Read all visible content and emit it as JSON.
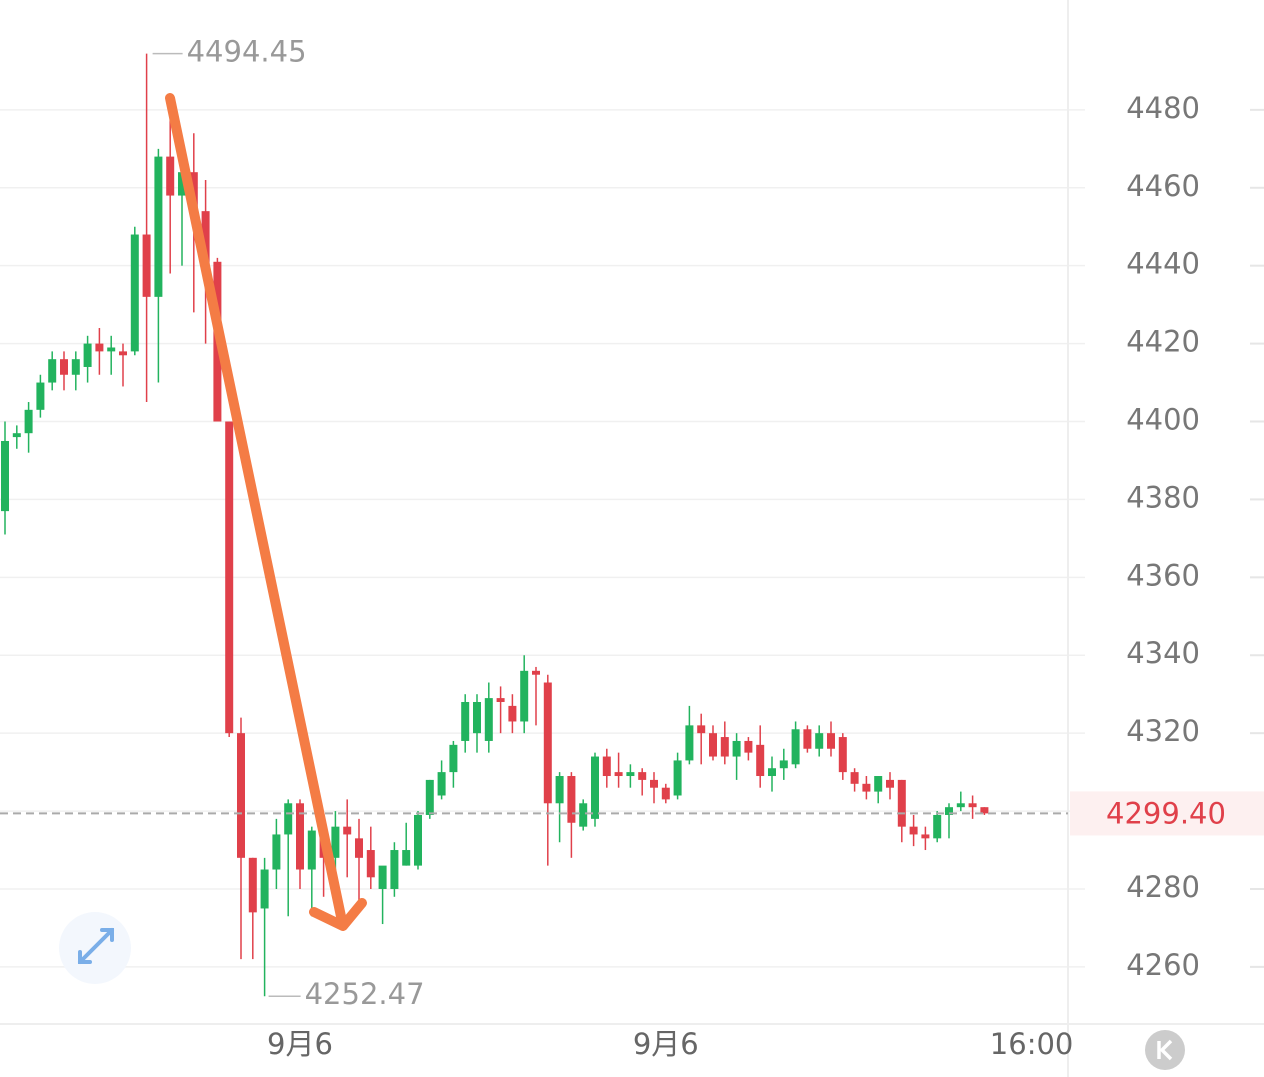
{
  "chart_data": {
    "type": "candlestick",
    "categories": [
      null,
      null,
      null,
      null,
      null,
      null,
      null,
      null,
      null,
      null,
      null,
      null,
      null,
      null,
      null,
      null,
      null,
      null,
      null,
      null,
      null,
      null,
      null,
      null,
      null,
      "9月6",
      null,
      null,
      null,
      null,
      null,
      null,
      null,
      null,
      null,
      null,
      null,
      null,
      null,
      null,
      null,
      null,
      null,
      null,
      null,
      null,
      null,
      null,
      null,
      null,
      null,
      null,
      null,
      null,
      null,
      null,
      "9月6",
      null,
      null,
      null,
      null,
      null,
      null,
      null,
      null,
      null,
      null,
      null,
      null,
      null,
      null,
      null,
      null,
      null,
      null,
      null,
      null,
      null,
      null,
      null,
      null,
      null,
      null,
      null,
      null,
      null,
      null,
      "16:00"
    ],
    "open": [
      4377,
      4396,
      4397,
      4403,
      4410,
      4416,
      4412,
      4414,
      4420,
      4418,
      4418,
      4418,
      4448,
      4432,
      4468,
      4458,
      4464,
      4454,
      4441,
      4400,
      4320,
      4288,
      4275,
      4285,
      4294,
      4302,
      4285,
      4295,
      4288,
      4296,
      4293,
      4290,
      4280,
      4280,
      4286,
      4286,
      4299,
      4304,
      4310,
      4318,
      4320,
      4318,
      4329,
      4327,
      4323,
      4336,
      4333,
      4302,
      4309,
      4296,
      4298,
      4314,
      4310,
      4309,
      4310,
      4308,
      4306,
      4304,
      4313,
      4322,
      4320,
      4319,
      4314,
      4318,
      4317,
      4309,
      4311,
      4312,
      4321,
      4316,
      4320,
      4319,
      4310,
      4307,
      4305,
      4308,
      4308,
      4296,
      4294,
      4293,
      4299,
      4301,
      4302,
      4301,
      null,
      null,
      null,
      null
    ],
    "high": [
      4400,
      4399,
      4405,
      4412,
      4418,
      4418,
      4418,
      4422,
      4424,
      4422,
      4420,
      4450,
      4494.45,
      4470,
      4478,
      4472,
      4474,
      4462,
      4442,
      4400,
      4324,
      4288,
      4288,
      4298,
      4303,
      4303,
      4296,
      4295,
      4300,
      4303,
      4298,
      4296,
      4285,
      4292,
      4297,
      4300,
      4308,
      4313,
      4318,
      4330,
      4330,
      4333,
      4332,
      4330,
      4340,
      4337,
      4335,
      4310,
      4310,
      4303,
      4315,
      4316,
      4315,
      4312,
      4311,
      4310,
      4307,
      4315,
      4327,
      4325,
      4322,
      4323,
      4320,
      4319,
      4322,
      4314,
      4316,
      4323,
      4322,
      4322,
      4323,
      4320,
      4311,
      4309,
      4309,
      4310,
      4308,
      4299,
      4296,
      4300,
      4302,
      4305,
      4304,
      4301,
      null,
      null,
      null,
      null
    ],
    "low": [
      4371,
      4393,
      4392,
      4401,
      4408,
      4408,
      4408,
      4410,
      4412,
      4412,
      4409,
      4417,
      4405,
      4410,
      4438,
      4440,
      4428,
      4420,
      4400,
      4319,
      4262,
      4262,
      4252.47,
      4280,
      4273,
      4280,
      4273,
      4278,
      4280,
      4283,
      4275,
      4280,
      4271,
      4278,
      4286,
      4285,
      4298,
      4303,
      4306,
      4315,
      4315,
      4315,
      4320,
      4320,
      4320,
      4322,
      4286,
      4292,
      4288,
      4295,
      4296,
      4306,
      4306,
      4306,
      4304,
      4302,
      4302,
      4303,
      4312,
      4312,
      4313,
      4312,
      4308,
      4313,
      4306,
      4305,
      4308,
      4311,
      4315,
      4314,
      4314,
      4308,
      4305,
      4303,
      4302,
      4303,
      4292,
      4291,
      4290,
      4292,
      4293,
      4300,
      4298,
      4299,
      null,
      null,
      null,
      null
    ],
    "close": [
      4395,
      4397,
      4403,
      4410,
      4416,
      4412,
      4416,
      4420,
      4418,
      4419,
      4417,
      4448,
      4432,
      4468,
      4458,
      4464,
      4454,
      4440,
      4400,
      4320,
      4288,
      4274,
      4285,
      4294,
      4302,
      4285,
      4295,
      4288,
      4296,
      4294,
      4288,
      4283,
      4286,
      4290,
      4290,
      4299,
      4308,
      4310,
      4317,
      4328,
      4328,
      4329,
      4328,
      4323,
      4336,
      4335,
      4302,
      4309,
      4297,
      4302,
      4314,
      4309,
      4309,
      4310,
      4308,
      4306,
      4303,
      4313,
      4322,
      4320,
      4314,
      4314,
      4318,
      4315,
      4309,
      4311,
      4313,
      4321,
      4316,
      4320,
      4316,
      4310,
      4307,
      4305,
      4309,
      4306,
      4296,
      4294,
      4293,
      4299,
      4301,
      4302,
      4301,
      4299.4,
      null,
      null,
      null,
      null
    ],
    "up_color": "#22b35e",
    "down_color": "#e0404a",
    "ylim": [
      4245.6,
      4508.2
    ],
    "yticks": [
      4260,
      4280,
      4300,
      4320,
      4340,
      4360,
      4380,
      4400,
      4420,
      4440,
      4460,
      4480
    ],
    "grid": true,
    "max_label": 4494.45,
    "min_label": 4252.47,
    "last_price": {
      "value": 4299.4,
      "label": "4299.40"
    }
  }
}
